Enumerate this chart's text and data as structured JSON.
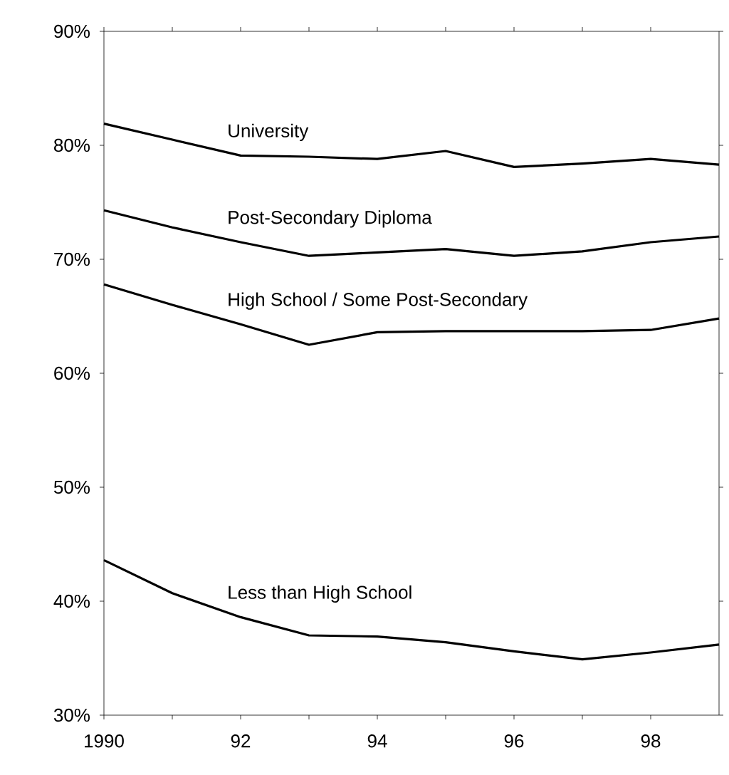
{
  "chart_data": {
    "type": "line",
    "x": [
      1990,
      1991,
      1992,
      1993,
      1994,
      1995,
      1996,
      1997,
      1998,
      1999
    ],
    "series": [
      {
        "name": "University",
        "color": "#000000",
        "values": [
          81.9,
          80.5,
          79.1,
          79.0,
          78.8,
          79.5,
          78.1,
          78.4,
          78.8,
          78.3
        ]
      },
      {
        "name": "Post-Secondary Diploma",
        "color": "#000000",
        "values": [
          74.3,
          72.8,
          71.5,
          70.3,
          70.6,
          70.9,
          70.3,
          70.7,
          71.5,
          72.0
        ]
      },
      {
        "name": "High School / Some Post-Secondary",
        "color": "#000000",
        "values": [
          67.8,
          66.0,
          64.3,
          62.5,
          63.6,
          63.7,
          63.7,
          63.7,
          63.8,
          64.8
        ]
      },
      {
        "name": "Less than High School",
        "color": "#000000",
        "values": [
          43.6,
          40.7,
          38.6,
          37.0,
          36.9,
          36.4,
          35.6,
          34.9,
          35.5,
          36.2
        ]
      }
    ],
    "xlim": [
      1990,
      1999
    ],
    "xticks": [
      {
        "value": 1990,
        "label": "1990"
      },
      {
        "value": 1991,
        "label": null
      },
      {
        "value": 1992,
        "label": "92"
      },
      {
        "value": 1993,
        "label": null
      },
      {
        "value": 1994,
        "label": "94"
      },
      {
        "value": 1995,
        "label": null
      },
      {
        "value": 1996,
        "label": "96"
      },
      {
        "value": 1997,
        "label": null
      },
      {
        "value": 1998,
        "label": "98"
      }
    ],
    "ylim": [
      30,
      90
    ],
    "yticks": [
      {
        "value": 30,
        "label": "30%"
      },
      {
        "value": 40,
        "label": "40%"
      },
      {
        "value": 50,
        "label": "50%"
      },
      {
        "value": 60,
        "label": "60%"
      },
      {
        "value": 70,
        "label": "70%"
      },
      {
        "value": 80,
        "label": "80%"
      },
      {
        "value": 90,
        "label": "90%"
      }
    ],
    "grid": false,
    "marker": "none",
    "line_style": "solid"
  }
}
